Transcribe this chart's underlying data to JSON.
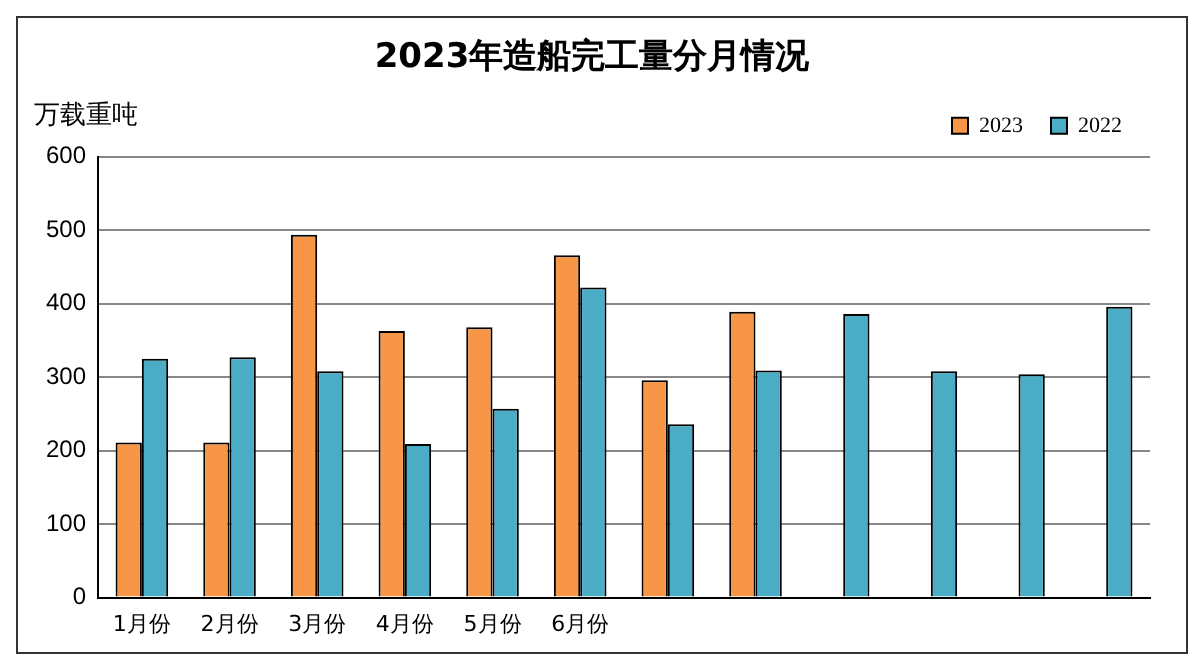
{
  "chart_data": {
    "type": "bar",
    "title": "2023年造船完工量分月情况",
    "ylabel": "万载重吨",
    "categories": [
      "1月份",
      "2月份",
      "3月份",
      "4月份",
      "5月份",
      "6月份",
      null,
      null,
      null,
      null,
      null,
      null
    ],
    "series": [
      {
        "name": "2023",
        "color": "#f79646",
        "values": [
          211,
          211,
          494,
          363,
          368,
          466,
          296,
          389,
          null,
          null,
          null,
          null
        ]
      },
      {
        "name": "2022",
        "color": "#4bacc6",
        "values": [
          325,
          327,
          308,
          209,
          257,
          422,
          236,
          309,
          386,
          308,
          304,
          396
        ]
      }
    ],
    "ylim": [
      0,
      600
    ],
    "yticks": [
      0,
      100,
      200,
      300,
      400,
      500,
      600
    ],
    "grid": "y",
    "legend": "top right"
  }
}
